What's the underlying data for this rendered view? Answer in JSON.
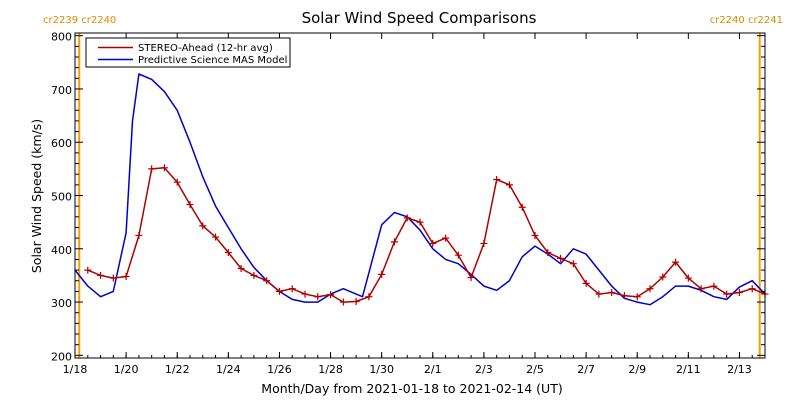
{
  "chart_data": {
    "type": "line",
    "title": "Solar Wind Speed Comparisons",
    "xlabel": "Month/Day from 2021-01-18 to 2021-02-14 (UT)",
    "ylabel": "Solar Wind Speed (km/s)",
    "ylim": [
      195,
      805
    ],
    "xlim": [
      "2021-01-18T00",
      "2021-02-14T00"
    ],
    "x_ticks": [
      "1/18",
      "1/20",
      "1/22",
      "1/24",
      "1/26",
      "1/28",
      "1/30",
      "2/1",
      "2/3",
      "2/5",
      "2/7",
      "2/9",
      "2/11",
      "2/13"
    ],
    "y_ticks": [
      200,
      300,
      400,
      500,
      600,
      700,
      800
    ],
    "legend_position": "top-left",
    "carrington_labels": [
      {
        "text": "cr2239 cr2240",
        "position": "top-left"
      },
      {
        "text": "cr2240 cr2241",
        "position": "top-right"
      }
    ],
    "carrington_boundaries": [
      "2021-01-18T04",
      "2021-02-13T19"
    ],
    "series": [
      {
        "name": "STEREO-Ahead (12-hr avg)",
        "color": "#b00000",
        "marker": "plus",
        "x": [
          "2021-01-18T12",
          "2021-01-19T00",
          "2021-01-19T12",
          "2021-01-20T00",
          "2021-01-20T12",
          "2021-01-21T00",
          "2021-01-21T12",
          "2021-01-22T00",
          "2021-01-22T12",
          "2021-01-23T00",
          "2021-01-23T12",
          "2021-01-24T00",
          "2021-01-24T12",
          "2021-01-25T00",
          "2021-01-25T12",
          "2021-01-26T00",
          "2021-01-26T12",
          "2021-01-27T00",
          "2021-01-27T12",
          "2021-01-28T00",
          "2021-01-28T12",
          "2021-01-29T00",
          "2021-01-29T12",
          "2021-01-30T00",
          "2021-01-30T12",
          "2021-01-31T00",
          "2021-01-31T12",
          "2021-02-01T00",
          "2021-02-01T12",
          "2021-02-02T00",
          "2021-02-02T12",
          "2021-02-03T00",
          "2021-02-03T12",
          "2021-02-04T00",
          "2021-02-04T12",
          "2021-02-05T00",
          "2021-02-05T12",
          "2021-02-06T00",
          "2021-02-06T12",
          "2021-02-07T00",
          "2021-02-07T12",
          "2021-02-08T00",
          "2021-02-08T12",
          "2021-02-09T00",
          "2021-02-09T12",
          "2021-02-10T00",
          "2021-02-10T12",
          "2021-02-11T00",
          "2021-02-11T12",
          "2021-02-12T00",
          "2021-02-12T12",
          "2021-02-13T00",
          "2021-02-13T12",
          "2021-02-14T00"
        ],
        "y": [
          360,
          350,
          345,
          348,
          425,
          550,
          552,
          525,
          483,
          443,
          422,
          393,
          363,
          350,
          340,
          320,
          325,
          315,
          310,
          314,
          300,
          301,
          310,
          352,
          413,
          458,
          450,
          410,
          420,
          388,
          346,
          410,
          530,
          520,
          478,
          425,
          393,
          382,
          372,
          335,
          315,
          318,
          312,
          310,
          325,
          347,
          375,
          345,
          325,
          330,
          315,
          318,
          325,
          315
        ]
      },
      {
        "name": "Predictive Science MAS Model",
        "color": "#0000cc",
        "marker": "none",
        "x": [
          "2021-01-18T00",
          "2021-01-18T12",
          "2021-01-19T00",
          "2021-01-19T12",
          "2021-01-20T00",
          "2021-01-20T06",
          "2021-01-20T12",
          "2021-01-21T00",
          "2021-01-21T12",
          "2021-01-22T00",
          "2021-01-22T12",
          "2021-01-23T00",
          "2021-01-23T12",
          "2021-01-24T00",
          "2021-01-24T12",
          "2021-01-25T00",
          "2021-01-25T12",
          "2021-01-26T00",
          "2021-01-26T12",
          "2021-01-27T00",
          "2021-01-27T12",
          "2021-01-28T00",
          "2021-01-28T12",
          "2021-01-29T00",
          "2021-01-29T06",
          "2021-01-29T12",
          "2021-01-30T00",
          "2021-01-30T12",
          "2021-01-31T00",
          "2021-01-31T12",
          "2021-02-01T00",
          "2021-02-01T12",
          "2021-02-02T00",
          "2021-02-02T12",
          "2021-02-03T00",
          "2021-02-03T12",
          "2021-02-04T00",
          "2021-02-04T12",
          "2021-02-05T00",
          "2021-02-05T12",
          "2021-02-06T00",
          "2021-02-06T12",
          "2021-02-07T00",
          "2021-02-07T12",
          "2021-02-08T00",
          "2021-02-08T12",
          "2021-02-09T00",
          "2021-02-09T12",
          "2021-02-10T00",
          "2021-02-10T12",
          "2021-02-11T00",
          "2021-02-11T12",
          "2021-02-12T00",
          "2021-02-12T12",
          "2021-02-13T00",
          "2021-02-13T12",
          "2021-02-14T00"
        ],
        "y": [
          360,
          330,
          310,
          320,
          430,
          640,
          728,
          718,
          695,
          660,
          600,
          535,
          480,
          440,
          400,
          365,
          340,
          320,
          305,
          300,
          300,
          315,
          325,
          315,
          310,
          355,
          445,
          468,
          460,
          435,
          400,
          380,
          372,
          352,
          330,
          322,
          340,
          385,
          405,
          390,
          372,
          400,
          390,
          360,
          330,
          307,
          300,
          295,
          310,
          330,
          330,
          322,
          310,
          305,
          328,
          340,
          315
        ]
      }
    ]
  }
}
